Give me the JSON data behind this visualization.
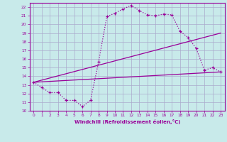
{
  "xlabel": "Windchill (Refroidissement éolien,°C)",
  "background_color": "#c8eaea",
  "grid_color": "#aaaacc",
  "line_color": "#990099",
  "xlim": [
    -0.5,
    23.5
  ],
  "ylim": [
    10,
    22.5
  ],
  "yticks": [
    10,
    11,
    12,
    13,
    14,
    15,
    16,
    17,
    18,
    19,
    20,
    21,
    22
  ],
  "xticks": [
    0,
    1,
    2,
    3,
    4,
    5,
    6,
    7,
    8,
    9,
    10,
    11,
    12,
    13,
    14,
    15,
    16,
    17,
    18,
    19,
    20,
    21,
    22,
    23
  ],
  "line1_x": [
    0,
    1,
    2,
    3,
    4,
    5,
    6,
    7,
    8,
    9,
    10,
    11,
    12,
    13,
    14,
    15,
    16,
    17,
    18,
    19,
    20,
    21,
    22,
    23
  ],
  "line1_y": [
    13.3,
    12.7,
    12.1,
    12.1,
    11.2,
    11.2,
    10.5,
    11.2,
    15.7,
    20.9,
    21.3,
    21.8,
    22.2,
    21.6,
    21.1,
    21.0,
    21.2,
    21.1,
    19.2,
    18.5,
    17.2,
    14.7,
    15.0,
    14.5
  ],
  "line2_x": [
    0,
    23
  ],
  "line2_y": [
    13.3,
    19.0
  ],
  "line3_x": [
    0,
    23
  ],
  "line3_y": [
    13.3,
    14.5
  ]
}
